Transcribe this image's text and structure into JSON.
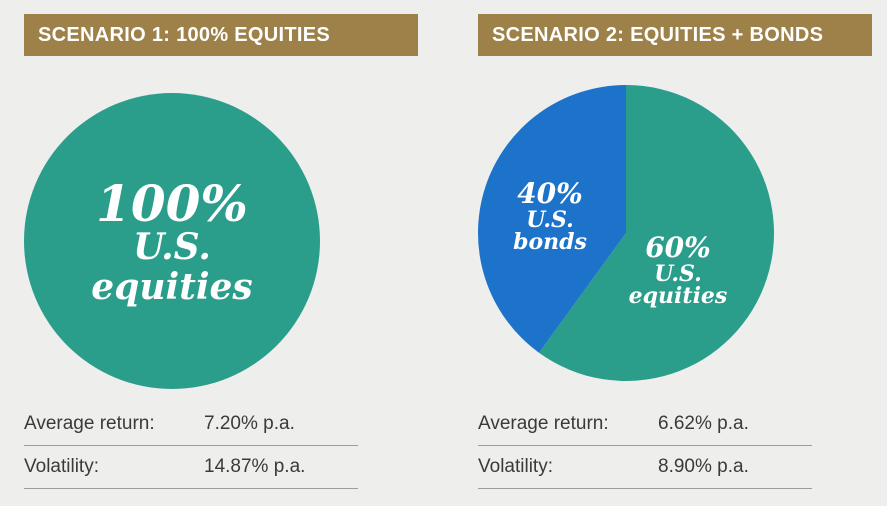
{
  "chart_data": [
    {
      "type": "pie",
      "title": "SCENARIO 1: 100% EQUITIES",
      "slices": [
        {
          "pct_label": "100%",
          "name_lines": [
            "U.S.",
            "equities"
          ],
          "value": 100,
          "color": "#2a9e8b"
        }
      ],
      "stats": [
        {
          "label": "Average return:",
          "value": "7.20% p.a."
        },
        {
          "label": "Volatility:",
          "value": "14.87% p.a."
        }
      ]
    },
    {
      "type": "pie",
      "title": "SCENARIO 2: EQUITIES + BONDS",
      "slices": [
        {
          "pct_label": "60%",
          "name_lines": [
            "U.S.",
            "equities"
          ],
          "value": 60,
          "color": "#2a9e8b"
        },
        {
          "pct_label": "40%",
          "name_lines": [
            "U.S.",
            "bonds"
          ],
          "value": 40,
          "color": "#1d72c9"
        }
      ],
      "stats": [
        {
          "label": "Average return:",
          "value": "6.62% p.a."
        },
        {
          "label": "Volatility:",
          "value": "8.90% p.a."
        }
      ]
    }
  ]
}
